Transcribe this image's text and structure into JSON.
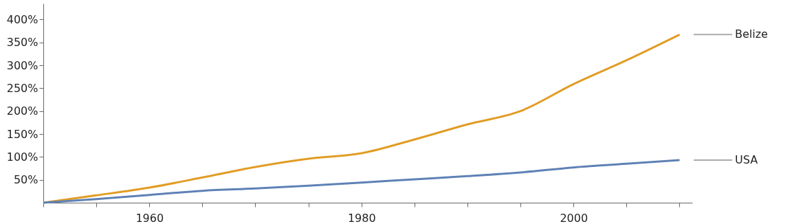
{
  "chart_data": {
    "type": "line",
    "x": [
      1950,
      1955,
      1960,
      1965,
      1970,
      1975,
      1980,
      1985,
      1990,
      1995,
      2000,
      2005,
      2010
    ],
    "series": [
      {
        "name": "Belize",
        "color": "#e19c24",
        "values": [
          0,
          16,
          33,
          55,
          78,
          96,
          108,
          138,
          171,
          200,
          259,
          311,
          367
        ]
      },
      {
        "name": "USA",
        "color": "#5e81b5",
        "values": [
          0,
          8,
          17,
          26,
          31,
          37,
          44,
          51,
          58,
          66,
          77,
          85,
          93
        ]
      }
    ],
    "xlim": [
      1950,
      2011.2
    ],
    "ylim": [
      0,
      435
    ],
    "xticks": [
      {
        "value": 1950,
        "label": null
      },
      {
        "value": 1955,
        "label": null
      },
      1960,
      {
        "value": 1965,
        "label": null
      },
      {
        "value": 1970,
        "label": null
      },
      {
        "value": 1975,
        "label": null
      },
      1980,
      {
        "value": 1985,
        "label": null
      },
      {
        "value": 1990,
        "label": null
      },
      {
        "value": 1995,
        "label": null
      },
      2000,
      {
        "value": 2005,
        "label": null
      },
      {
        "value": 2010,
        "label": null
      }
    ],
    "yticks": [
      {
        "value": 50,
        "label": "50%"
      },
      {
        "value": 100,
        "label": "100%"
      },
      {
        "value": 150,
        "label": "150%"
      },
      {
        "value": 200,
        "label": "200%"
      },
      {
        "value": 250,
        "label": "250%"
      },
      {
        "value": 300,
        "label": "300%"
      },
      {
        "value": 350,
        "label": "350%"
      },
      {
        "value": 400,
        "label": "400%"
      }
    ],
    "grid": false,
    "legend": "right",
    "marker": "none",
    "line_style": "solid"
  }
}
